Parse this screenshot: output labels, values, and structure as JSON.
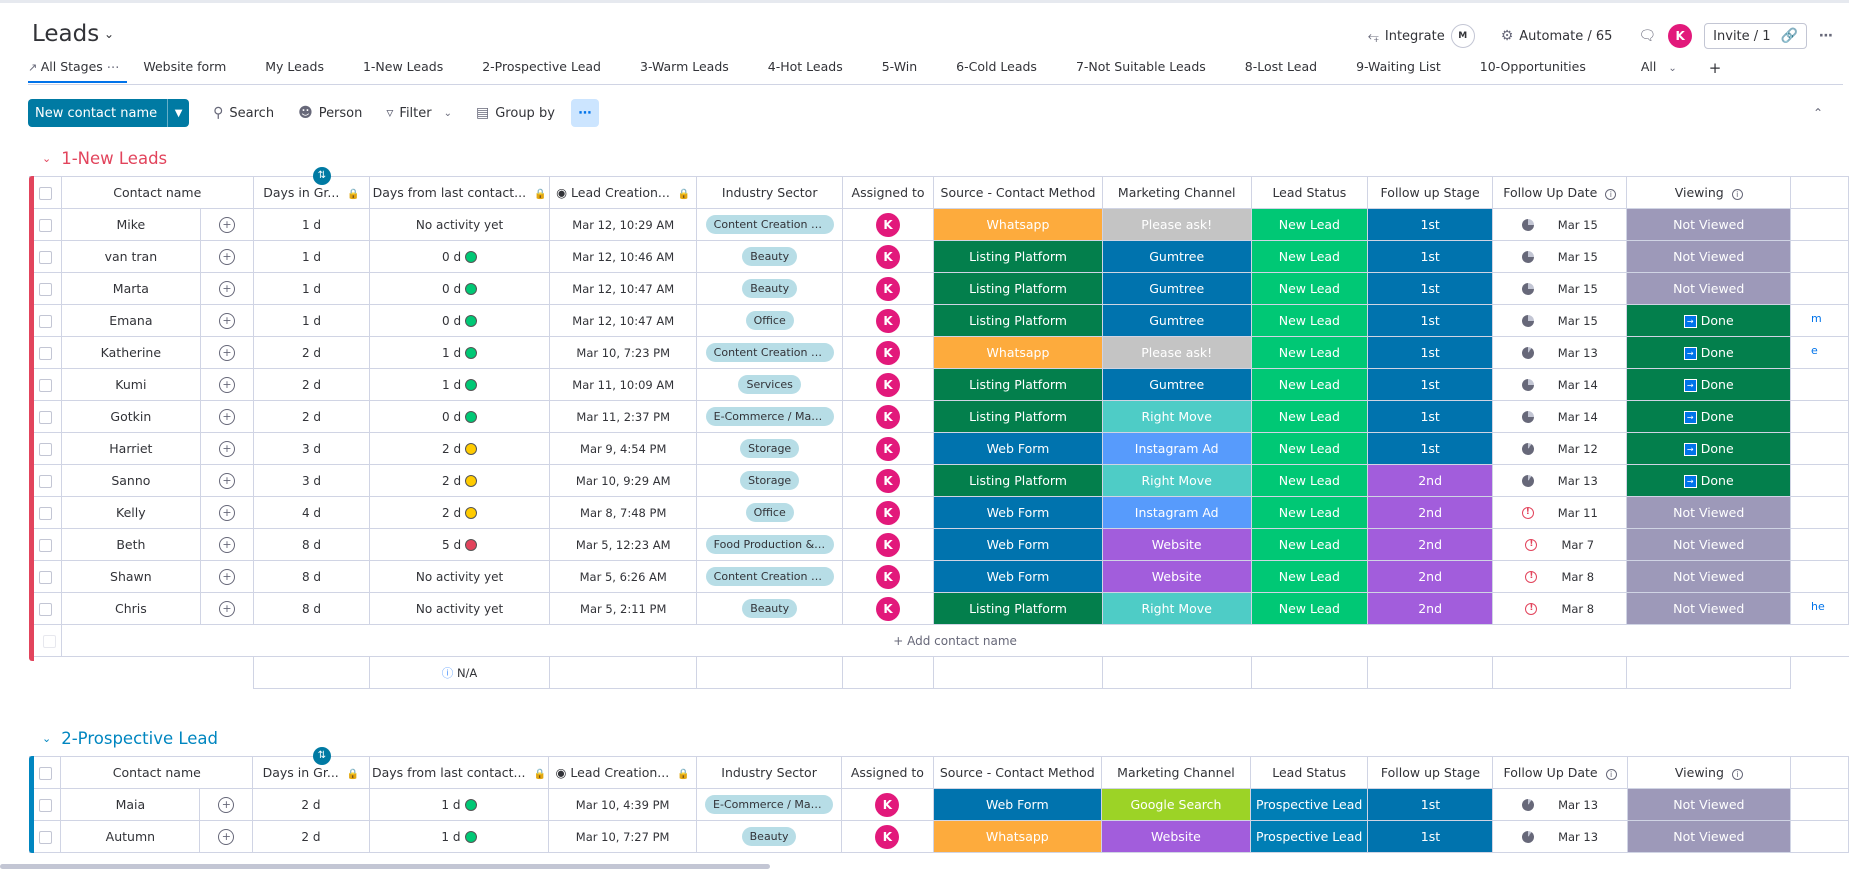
{
  "header": {
    "title": "Leads",
    "integrate_label": "Integrate",
    "integrate_badge": "M",
    "automate_label": "Automate / 65",
    "avatar_letter": "K",
    "invite_label": "Invite / 1"
  },
  "tabs": [
    {
      "label": "All Stages"
    },
    {
      "label": "Website form"
    },
    {
      "label": "My Leads"
    },
    {
      "label": "1-New Leads"
    },
    {
      "label": "2-Prospective Lead"
    },
    {
      "label": "3-Warm Leads"
    },
    {
      "label": "4-Hot Leads"
    },
    {
      "label": "5-Win"
    },
    {
      "label": "6-Cold Leads"
    },
    {
      "label": "7-Not Suitable Leads"
    },
    {
      "label": "8-Lost Lead"
    },
    {
      "label": "9-Waiting List"
    },
    {
      "label": "10-Opportunities"
    }
  ],
  "tabs_all_label": "All",
  "toolbar": {
    "new_label": "New contact name",
    "search_label": "Search",
    "person_label": "Person",
    "filter_label": "Filter",
    "groupby_label": "Group by"
  },
  "columns": {
    "name": "Contact name",
    "days": "Days in Gr...",
    "last": "Days from last contact...",
    "created": "Lead Creation...",
    "industry": "Industry Sector",
    "assigned": "Assigned to",
    "source": "Source - Contact Method",
    "marketing": "Marketing Channel",
    "status": "Lead Status",
    "stage": "Follow up Stage",
    "fudate": "Follow Up Date",
    "viewing": "Viewing"
  },
  "colors": {
    "whatsapp": "#fdab3d",
    "listing": "#037f4c",
    "webform": "#0073ae",
    "please_ask": "#c4c4c4",
    "gumtree": "#0073ae",
    "right_move": "#4eccc6",
    "instagram": "#579bfc",
    "website": "#a25ddc",
    "google": "#9cd326",
    "new_lead": "#00c875",
    "prospective": "#007eb5",
    "stage1": "#0073ae",
    "stage2": "#a25ddc",
    "not_viewed": "#9d99b9",
    "done": "#037f4c",
    "group1": "#e2445c",
    "group2": "#0086c0"
  },
  "groups": [
    {
      "title": "1-New Leads",
      "add_label": "+ Add contact name",
      "summary": "N/A",
      "rows": [
        {
          "name": "Mike",
          "days": "1 d",
          "last": "No activity yet",
          "dot": "",
          "created": "Mar 12, 10:29 AM",
          "industry": "Content Creation & D...",
          "assigned": "K",
          "source": "Whatsapp",
          "marketing": "Please ask!",
          "status": "New Lead",
          "stage": "1st",
          "fu_icon": "clock",
          "fudate": "Mar 15",
          "viewing": "Not Viewed"
        },
        {
          "name": "van tran",
          "days": "1 d",
          "last": "0 d",
          "dot": "#00c875",
          "created": "Mar 12, 10:46 AM",
          "industry": "Beauty",
          "assigned": "K",
          "source": "Listing Platform",
          "marketing": "Gumtree",
          "status": "New Lead",
          "stage": "1st",
          "fu_icon": "clock",
          "fudate": "Mar 15",
          "viewing": "Not Viewed"
        },
        {
          "name": "Marta",
          "days": "1 d",
          "last": "0 d",
          "dot": "#00c875",
          "created": "Mar 12, 10:47 AM",
          "industry": "Beauty",
          "assigned": "K",
          "source": "Listing Platform",
          "marketing": "Gumtree",
          "status": "New Lead",
          "stage": "1st",
          "fu_icon": "clock",
          "fudate": "Mar 15",
          "viewing": "Not Viewed"
        },
        {
          "name": "Emana",
          "days": "1 d",
          "last": "0 d",
          "dot": "#00c875",
          "created": "Mar 12, 10:47 AM",
          "industry": "Office",
          "assigned": "K",
          "source": "Listing Platform",
          "marketing": "Gumtree",
          "status": "New Lead",
          "stage": "1st",
          "fu_icon": "clock",
          "fudate": "Mar 15",
          "viewing": "Done"
        },
        {
          "name": "Katherine",
          "days": "2 d",
          "last": "1 d",
          "dot": "#00c875",
          "created": "Mar 10, 7:23 PM",
          "industry": "Content Creation & D...",
          "assigned": "K",
          "source": "Whatsapp",
          "marketing": "Please ask!",
          "status": "New Lead",
          "stage": "1st",
          "fu_icon": "clock2",
          "fudate": "Mar 13",
          "viewing": "Done"
        },
        {
          "name": "Kumi",
          "days": "2 d",
          "last": "1 d",
          "dot": "#00c875",
          "created": "Mar 11, 10:09 AM",
          "industry": "Services",
          "assigned": "K",
          "source": "Listing Platform",
          "marketing": "Gumtree",
          "status": "New Lead",
          "stage": "1st",
          "fu_icon": "clock",
          "fudate": "Mar 14",
          "viewing": "Done"
        },
        {
          "name": "Gotkin",
          "days": "2 d",
          "last": "0 d",
          "dot": "#00c875",
          "created": "Mar 11, 2:37 PM",
          "industry": "E-Commerce / Maker",
          "assigned": "K",
          "source": "Listing Platform",
          "marketing": "Right Move",
          "status": "New Lead",
          "stage": "1st",
          "fu_icon": "clock",
          "fudate": "Mar 14",
          "viewing": "Done"
        },
        {
          "name": "Harriet",
          "days": "3 d",
          "last": "2 d",
          "dot": "#ffcb00",
          "created": "Mar 9, 4:54 PM",
          "industry": "Storage",
          "assigned": "K",
          "source": "Web Form",
          "marketing": "Instagram Ad",
          "status": "New Lead",
          "stage": "1st",
          "fu_icon": "clock2",
          "fudate": "Mar 12",
          "viewing": "Done"
        },
        {
          "name": "Sanno",
          "days": "3 d",
          "last": "2 d",
          "dot": "#ffcb00",
          "created": "Mar 10, 9:29 AM",
          "industry": "Storage",
          "assigned": "K",
          "source": "Listing Platform",
          "marketing": "Right Move",
          "status": "New Lead",
          "stage": "2nd",
          "fu_icon": "clock2",
          "fudate": "Mar 13",
          "viewing": "Done"
        },
        {
          "name": "Kelly",
          "days": "4 d",
          "last": "2 d",
          "dot": "#ffcb00",
          "created": "Mar 8, 7:48 PM",
          "industry": "Office",
          "assigned": "K",
          "source": "Web Form",
          "marketing": "Instagram Ad",
          "status": "New Lead",
          "stage": "2nd",
          "fu_icon": "alert",
          "fudate": "Mar 11",
          "viewing": "Not Viewed"
        },
        {
          "name": "Beth",
          "days": "8 d",
          "last": "5 d",
          "dot": "#e2445c",
          "created": "Mar 5, 12:23 AM",
          "industry": "Food Production & Re...",
          "assigned": "K",
          "source": "Web Form",
          "marketing": "Website",
          "status": "New Lead",
          "stage": "2nd",
          "fu_icon": "alert",
          "fudate": "Mar 7",
          "viewing": "Not Viewed"
        },
        {
          "name": "Shawn",
          "days": "8 d",
          "last": "No activity yet",
          "dot": "",
          "created": "Mar 5, 6:26 AM",
          "industry": "Content Creation & D...",
          "assigned": "K",
          "source": "Web Form",
          "marketing": "Website",
          "status": "New Lead",
          "stage": "2nd",
          "fu_icon": "alert",
          "fudate": "Mar 8",
          "viewing": "Not Viewed"
        },
        {
          "name": "Chris",
          "days": "8 d",
          "last": "No activity yet",
          "dot": "",
          "created": "Mar 5, 2:11 PM",
          "industry": "Beauty",
          "assigned": "K",
          "source": "Listing Platform",
          "marketing": "Right Move",
          "status": "New Lead",
          "stage": "2nd",
          "fu_icon": "alert",
          "fudate": "Mar 8",
          "viewing": "Not Viewed"
        }
      ],
      "cut_text": [
        "m",
        "e",
        "he"
      ]
    },
    {
      "title": "2-Prospective Lead",
      "rows": [
        {
          "name": "Maia",
          "days": "2 d",
          "last": "1 d",
          "dot": "#00c875",
          "created": "Mar 10, 4:39 PM",
          "industry": "E-Commerce / Maker",
          "assigned": "K",
          "source": "Web Form",
          "marketing": "Google Search",
          "status": "Prospective Lead",
          "stage": "1st",
          "fu_icon": "clock2",
          "fudate": "Mar 13",
          "viewing": "Not Viewed"
        },
        {
          "name": "Autumn",
          "days": "2 d",
          "last": "1 d",
          "dot": "#00c875",
          "created": "Mar 10, 7:27 PM",
          "industry": "Beauty",
          "assigned": "K",
          "source": "Whatsapp",
          "marketing": "Website",
          "status": "Prospective Lead",
          "stage": "1st",
          "fu_icon": "clock2",
          "fudate": "Mar 13",
          "viewing": "Not Viewed"
        }
      ]
    }
  ]
}
